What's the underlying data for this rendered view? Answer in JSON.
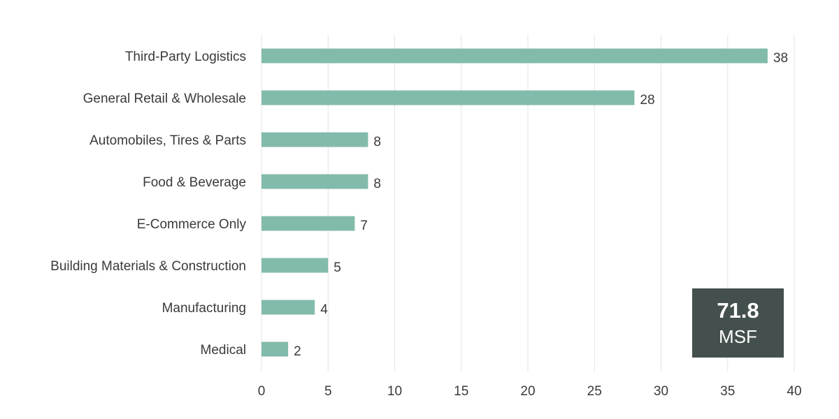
{
  "chart_data": {
    "type": "bar",
    "orientation": "horizontal",
    "categories": [
      "Third-Party Logistics",
      "General Retail & Wholesale",
      "Automobiles, Tires & Parts",
      "Food & Beverage",
      "E-Commerce Only",
      "Building Materials & Construction",
      "Manufacturing",
      "Medical"
    ],
    "values": [
      38,
      28,
      8,
      8,
      7,
      5,
      4,
      2
    ],
    "xlim": [
      0,
      40
    ],
    "xticks": [
      0,
      5,
      10,
      15,
      20,
      25,
      30,
      35,
      40
    ],
    "grid": true,
    "bar_color": "#82bbab",
    "title": "",
    "xlabel": "",
    "ylabel": ""
  },
  "total_box": {
    "value": "71.8",
    "unit": "MSF",
    "background": "#44504e"
  }
}
